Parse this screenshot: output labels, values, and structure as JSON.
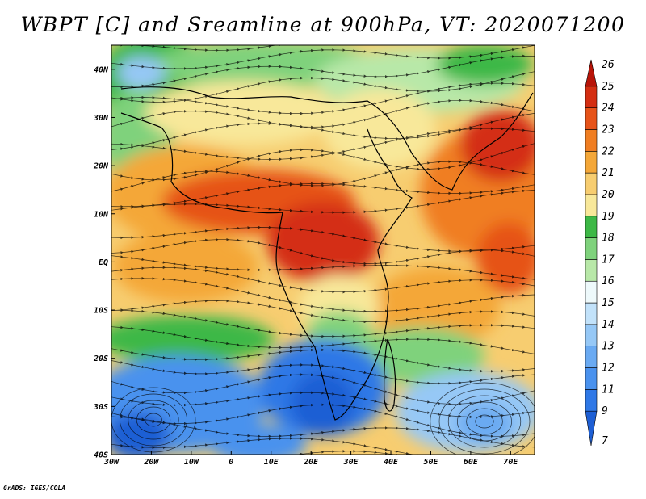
{
  "title": "WBPT [C] and Sreamline at 900hPa, VT: 2020071200",
  "credit": "GrADS: IGES/COLA",
  "map": {
    "lon_range": [
      -30,
      76
    ],
    "lat_range": [
      -40,
      45
    ],
    "lon_ticks": [
      {
        "value": -30,
        "label": "30W"
      },
      {
        "value": -20,
        "label": "20W"
      },
      {
        "value": -10,
        "label": "10W"
      },
      {
        "value": 0,
        "label": "0"
      },
      {
        "value": 10,
        "label": "10E"
      },
      {
        "value": 20,
        "label": "20E"
      },
      {
        "value": 30,
        "label": "30E"
      },
      {
        "value": 40,
        "label": "40E"
      },
      {
        "value": 50,
        "label": "50E"
      },
      {
        "value": 60,
        "label": "60E"
      },
      {
        "value": 70,
        "label": "70E"
      }
    ],
    "lat_ticks": [
      {
        "value": 40,
        "label": "40N"
      },
      {
        "value": 30,
        "label": "30N"
      },
      {
        "value": 20,
        "label": "20N"
      },
      {
        "value": 10,
        "label": "10N"
      },
      {
        "value": 0,
        "label": "EQ"
      },
      {
        "value": -10,
        "label": "10S"
      },
      {
        "value": -20,
        "label": "20S"
      },
      {
        "value": -30,
        "label": "30S"
      },
      {
        "value": -40,
        "label": "40S"
      }
    ]
  },
  "colorbar": {
    "labels": [
      "7",
      "9",
      "11",
      "12",
      "13",
      "14",
      "15",
      "16",
      "17",
      "18",
      "19",
      "20",
      "21",
      "22",
      "23",
      "24",
      "25",
      "26"
    ],
    "colors": [
      "#1e5fd4",
      "#2f78e6",
      "#4a92ee",
      "#6aaaf2",
      "#96c8f6",
      "#c2e2fa",
      "#eef9fb",
      "#b8e8a8",
      "#7fd27c",
      "#3db846",
      "#f8e89a",
      "#f7cd70",
      "#f4a738",
      "#f07e22",
      "#e65319",
      "#d42e12",
      "#b81408"
    ]
  }
}
